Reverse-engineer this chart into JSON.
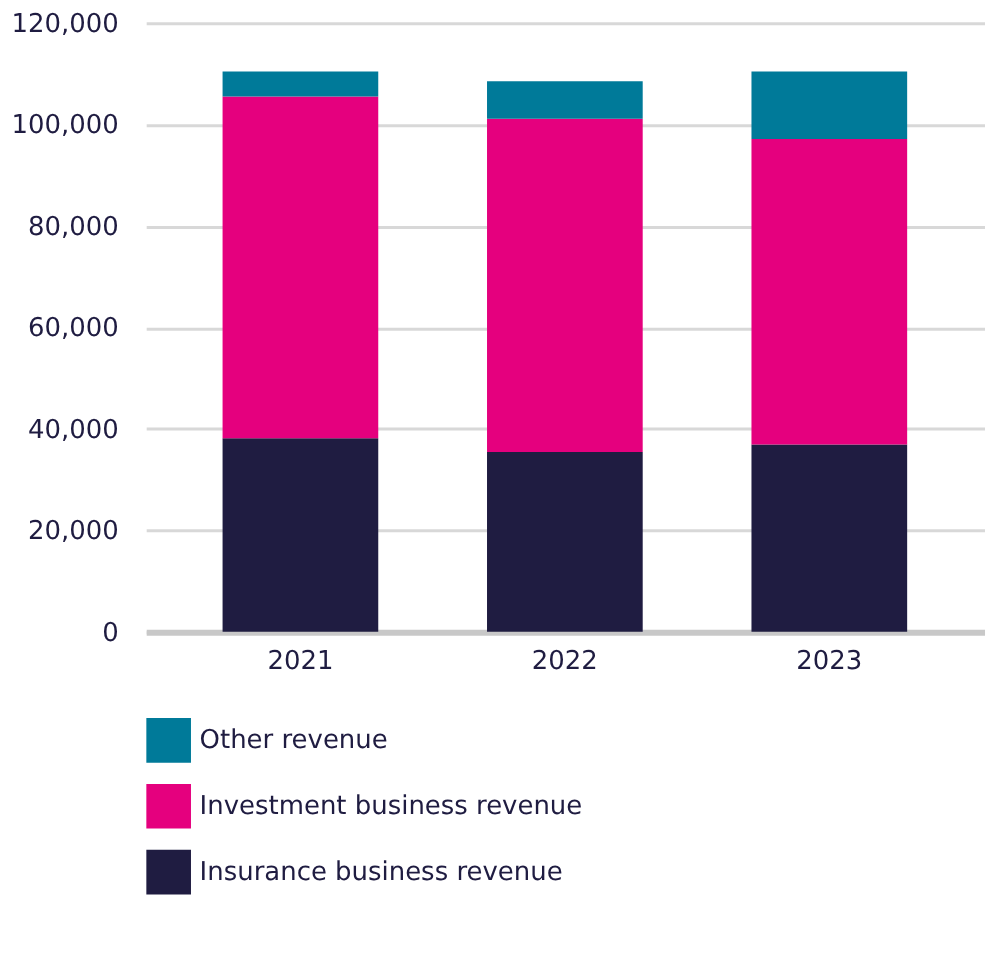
{
  "chart_data": {
    "type": "bar",
    "stacked": true,
    "categories": [
      "2021",
      "2022",
      "2023"
    ],
    "series": [
      {
        "name": "Insurance business revenue",
        "color": "#1f1c41",
        "values": [
          38100,
          35400,
          36900
        ]
      },
      {
        "name": "Investment business revenue",
        "color": "#e5007e",
        "values": [
          67400,
          65700,
          60200
        ]
      },
      {
        "name": "Other revenue",
        "color": "#007a99",
        "values": [
          4900,
          7400,
          13300
        ]
      }
    ],
    "ylim": [
      0,
      120000
    ],
    "yticks": [
      0,
      {
        "value": 20000,
        "label": "20,000"
      },
      {
        "value": 40000,
        "label": "40,000"
      },
      {
        "value": 60000,
        "label": "60,000"
      },
      {
        "value": 80000,
        "label": "80,000"
      },
      {
        "value": 100000,
        "label": "100,000"
      },
      {
        "value": 120000,
        "label": "120,000"
      }
    ],
    "grid": "y",
    "legend": "bottom"
  }
}
